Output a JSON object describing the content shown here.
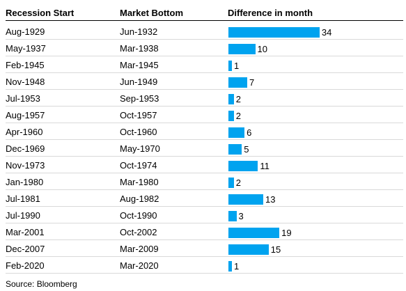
{
  "table": {
    "headers": {
      "recession_start": "Recession Start",
      "market_bottom": "Market Bottom",
      "difference": "Difference in month"
    },
    "bar_color": "#00a3ef"
  },
  "chart_data": {
    "type": "table",
    "columns": [
      "Recession Start",
      "Market Bottom",
      "Difference in month"
    ],
    "rows": [
      {
        "recession_start": "Aug-1929",
        "market_bottom": "Jun-1932",
        "difference": 34
      },
      {
        "recession_start": "May-1937",
        "market_bottom": "Mar-1938",
        "difference": 10
      },
      {
        "recession_start": "Feb-1945",
        "market_bottom": "Mar-1945",
        "difference": 1
      },
      {
        "recession_start": "Nov-1948",
        "market_bottom": "Jun-1949",
        "difference": 7
      },
      {
        "recession_start": "Jul-1953",
        "market_bottom": "Sep-1953",
        "difference": 2
      },
      {
        "recession_start": "Aug-1957",
        "market_bottom": "Oct-1957",
        "difference": 2
      },
      {
        "recession_start": "Apr-1960",
        "market_bottom": "Oct-1960",
        "difference": 6
      },
      {
        "recession_start": "Dec-1969",
        "market_bottom": "May-1970",
        "difference": 5
      },
      {
        "recession_start": "Nov-1973",
        "market_bottom": "Oct-1974",
        "difference": 11
      },
      {
        "recession_start": "Jan-1980",
        "market_bottom": "Mar-1980",
        "difference": 2
      },
      {
        "recession_start": "Jul-1981",
        "market_bottom": "Aug-1982",
        "difference": 13
      },
      {
        "recession_start": "Jul-1990",
        "market_bottom": "Oct-1990",
        "difference": 3
      },
      {
        "recession_start": "Mar-2001",
        "market_bottom": "Oct-2002",
        "difference": 19
      },
      {
        "recession_start": "Dec-2007",
        "market_bottom": "Mar-2009",
        "difference": 15
      },
      {
        "recession_start": "Feb-2020",
        "market_bottom": "Mar-2020",
        "difference": 1
      }
    ],
    "source": "Source: Bloomberg"
  }
}
